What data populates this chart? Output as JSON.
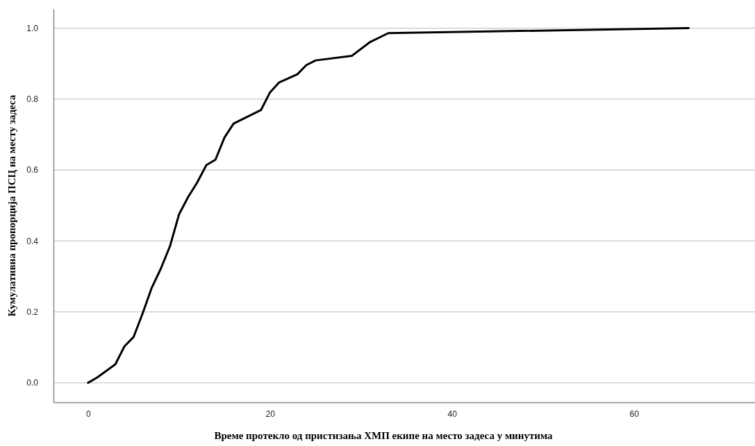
{
  "chart_data": {
    "type": "line",
    "xlabel": "Време протекло од пристизања ХМП екипе на место задеса у минутима",
    "ylabel": "Кумулативна пропорција ПСЦ на месту задеса",
    "x": [
      0,
      1,
      3,
      4,
      5,
      6,
      7,
      8,
      9,
      10,
      11,
      12,
      13,
      14,
      15,
      16,
      19,
      20,
      21,
      23,
      24,
      25,
      29,
      31,
      33,
      66
    ],
    "series": [
      {
        "color": "#000000",
        "values": [
          0,
          0.015,
          0.052,
          0.103,
          0.129,
          0.196,
          0.268,
          0.322,
          0.385,
          0.475,
          0.524,
          0.565,
          0.614,
          0.629,
          0.692,
          0.731,
          0.769,
          0.819,
          0.847,
          0.87,
          0.896,
          0.909,
          0.922,
          0.961,
          0.986,
          1.0
        ]
      }
    ],
    "xlim": [
      -3.8,
      73.3
    ],
    "ylim": [
      -0.055,
      1.054
    ],
    "xticks": [
      0,
      20,
      40,
      60
    ],
    "yticks": [
      {
        "value": 0,
        "label": "0.0"
      },
      {
        "value": 0.2,
        "label": "0.2"
      },
      {
        "value": 0.4,
        "label": "0.4"
      },
      {
        "value": 0.6,
        "label": "0.6"
      },
      {
        "value": 0.8,
        "label": "0.8"
      },
      {
        "value": 1,
        "label": "1.0"
      }
    ],
    "grid": "y",
    "line_style": "solid",
    "marker": "none"
  }
}
